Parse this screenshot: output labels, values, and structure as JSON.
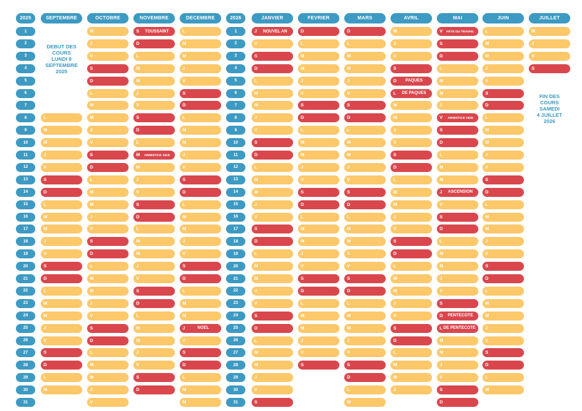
{
  "colors": {
    "weekday": "#fcc86a",
    "weekend": "#d9474d",
    "header": "#3d9ac2"
  },
  "year_start": "2025",
  "year_end": "2026",
  "day_numbers": [
    "1",
    "2",
    "3",
    "4",
    "5",
    "6",
    "7",
    "8",
    "9",
    "10",
    "11",
    "12",
    "13",
    "14",
    "15",
    "16",
    "17",
    "18",
    "19",
    "20",
    "21",
    "22",
    "23",
    "24",
    "25",
    "26",
    "27",
    "28",
    "29",
    "30",
    "31"
  ],
  "notes": {
    "start": "DEBUT DES\nCOURS\nLUNDI 8\nSEPTEMBRE\n2025",
    "end": "FIN DES\nCOURS\nSAMEDI\n4 JUILLET\n2026"
  },
  "months": [
    {
      "name": "Septembre",
      "first": 1,
      "days": 30,
      "rows_from": 8,
      "holidays": {}
    },
    {
      "name": "Octobre",
      "first": 3,
      "days": 31,
      "holidays": {}
    },
    {
      "name": "Novembre",
      "first": 6,
      "days": 30,
      "holidays": {
        "1": "TOUSSAINT",
        "11": "ARMISTICE 1918"
      }
    },
    {
      "name": "Decembre",
      "first": 1,
      "days": 31,
      "holidays": {
        "25": "NOEL"
      }
    },
    {
      "name": "Janvier",
      "first": 4,
      "days": 31,
      "holidays": {
        "1": "NOUVEL AN"
      }
    },
    {
      "name": "Fevrier",
      "first": 0,
      "days": 28,
      "holidays": {}
    },
    {
      "name": "Mars",
      "first": 0,
      "days": 31,
      "holidays": {}
    },
    {
      "name": "Avril",
      "first": 3,
      "days": 30,
      "holidays": {
        "5": "PAQUES",
        "6": "DE PAQUES"
      }
    },
    {
      "name": "Mai",
      "first": 5,
      "days": 31,
      "holidays": {
        "1": "FETE DU TRAVAIL",
        "8": "ARMISTICE 1945",
        "14": "ASCENSION",
        "24": "PENTECOTE",
        "25": "DE PENTECOTE"
      }
    },
    {
      "name": "Juin",
      "first": 1,
      "days": 30,
      "holidays": {}
    },
    {
      "name": "Juillet",
      "first": 3,
      "days": 4,
      "holidays": {}
    }
  ],
  "day_letters": [
    "D",
    "L",
    "M",
    "M",
    "J",
    "V",
    "S"
  ]
}
